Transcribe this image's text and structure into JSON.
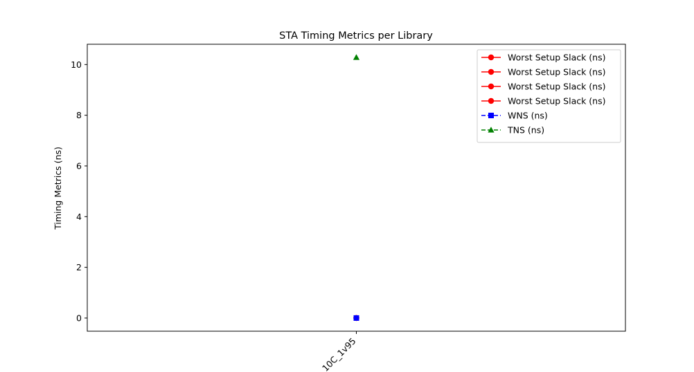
{
  "chart_data": {
    "type": "line",
    "title": "STA Timing Metrics per Library",
    "xlabel": "",
    "ylabel": "Timing Metrics (ns)",
    "categories": [
      "10C_1v95"
    ],
    "ylim": [
      -0.52,
      10.8
    ],
    "yticks": [
      0,
      2,
      4,
      6,
      8,
      10
    ],
    "grid": false,
    "legend_position": "top-right",
    "series": [
      {
        "name": "Worst Setup Slack (ns)",
        "values": [
          0.0
        ],
        "color": "#ff0000",
        "marker": "circle",
        "linestyle": "solid"
      },
      {
        "name": "Worst Setup Slack (ns)",
        "values": [
          0.0
        ],
        "color": "#ff0000",
        "marker": "circle",
        "linestyle": "solid"
      },
      {
        "name": "Worst Setup Slack (ns)",
        "values": [
          0.0
        ],
        "color": "#ff0000",
        "marker": "circle",
        "linestyle": "solid"
      },
      {
        "name": "Worst Setup Slack (ns)",
        "values": [
          0.0
        ],
        "color": "#ff0000",
        "marker": "circle",
        "linestyle": "solid"
      },
      {
        "name": "WNS (ns)",
        "values": [
          0.0
        ],
        "color": "#0000ff",
        "marker": "square",
        "linestyle": "dashed"
      },
      {
        "name": "TNS (ns)",
        "values": [
          10.28
        ],
        "color": "#008000",
        "marker": "triangle",
        "linestyle": "dashed"
      }
    ]
  }
}
